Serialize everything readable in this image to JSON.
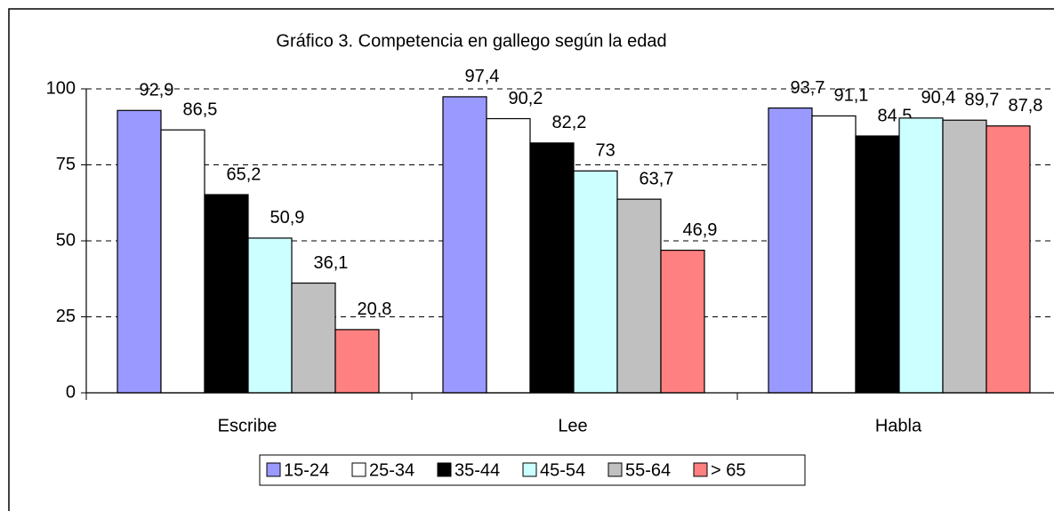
{
  "chart_data": {
    "type": "bar",
    "title": "Gráfico 3. Competencia en gallego según la edad",
    "categories": [
      "Escribe",
      "Lee",
      "Habla"
    ],
    "series": [
      {
        "name": "15-24",
        "color": "#9999ff",
        "values": [
          92.9,
          97.4,
          93.7
        ],
        "value_labels": [
          "92,9",
          "97,4",
          "93,7"
        ]
      },
      {
        "name": "25-34",
        "color": "#ffffff",
        "values": [
          86.5,
          90.2,
          91.1
        ],
        "value_labels": [
          "86,5",
          "90,2",
          "91,1"
        ]
      },
      {
        "name": "35-44",
        "color": "#000000",
        "values": [
          65.2,
          82.2,
          84.5
        ],
        "value_labels": [
          "65,2",
          "82,2",
          "84,5"
        ]
      },
      {
        "name": "45-54",
        "color": "#ccffff",
        "values": [
          50.9,
          73,
          90.4
        ],
        "value_labels": [
          "50,9",
          "73",
          "90,4"
        ]
      },
      {
        "name": "55-64",
        "color": "#c0c0c0",
        "values": [
          36.1,
          63.7,
          89.7
        ],
        "value_labels": [
          "36,1",
          "63,7",
          "89,7"
        ]
      },
      {
        "name": "> 65",
        "color": "#ff8080",
        "values": [
          20.8,
          46.9,
          87.8
        ],
        "value_labels": [
          "20,8",
          "46,9",
          "87,8"
        ]
      }
    ],
    "ylim": [
      0,
      100
    ],
    "yticks": [
      0,
      25,
      50,
      75,
      100
    ],
    "grid": true,
    "legend": "bottom"
  }
}
